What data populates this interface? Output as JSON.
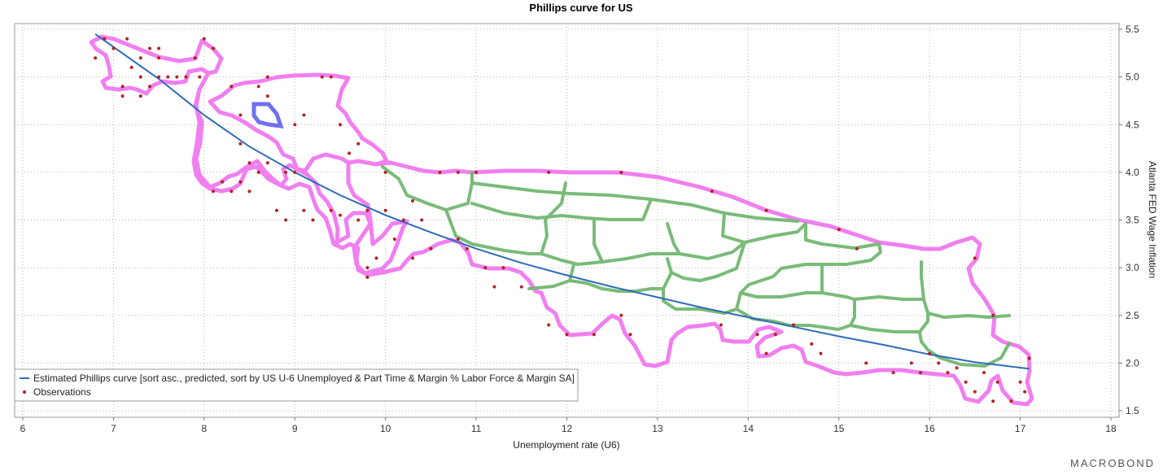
{
  "chart_data": {
    "type": "scatter",
    "title": "Phillips curve for US",
    "xlabel": "Unemployment rate (U6)",
    "ylabel": "Atlanta FED Wage Inflation",
    "xlim": [
      6,
      18
    ],
    "ylim": [
      1.5,
      5.6
    ],
    "x_ticks": [
      6,
      7,
      8,
      9,
      10,
      11,
      12,
      13,
      14,
      15,
      16,
      17,
      18
    ],
    "y_ticks": [
      1.5,
      2.0,
      2.5,
      3.0,
      3.5,
      4.0,
      4.5,
      5.0,
      5.5
    ],
    "y_axis_side": "right",
    "grid": true,
    "legend_position": "bottom-left",
    "brand": "MACROBOND",
    "series": [
      {
        "name": "Estimated Phillips curve [sort asc., predicted, sort by US U-6 Unemployed & Part Time & Margin % Labor Force & Margin SA]",
        "kind": "line",
        "color": "#2e6bb8",
        "points": [
          [
            6.8,
            5.45
          ],
          [
            7.5,
            4.98
          ],
          [
            8,
            4.6
          ],
          [
            8.5,
            4.27
          ],
          [
            9,
            4.0
          ],
          [
            9.5,
            3.76
          ],
          [
            10,
            3.55
          ],
          [
            10.5,
            3.37
          ],
          [
            11,
            3.2
          ],
          [
            11.5,
            3.05
          ],
          [
            12,
            2.92
          ],
          [
            12.5,
            2.8
          ],
          [
            13,
            2.69
          ],
          [
            13.5,
            2.58
          ],
          [
            14,
            2.48
          ],
          [
            14.5,
            2.38
          ],
          [
            15,
            2.28
          ],
          [
            15.5,
            2.19
          ],
          [
            16,
            2.09
          ],
          [
            16.5,
            2.01
          ],
          [
            17.1,
            1.94
          ]
        ]
      },
      {
        "name": "Observations",
        "kind": "scatter",
        "color": "#b22222",
        "points": [
          [
            6.8,
            5.2
          ],
          [
            6.9,
            5.4
          ],
          [
            7.0,
            5.3
          ],
          [
            7.15,
            5.4
          ],
          [
            7.4,
            5.3
          ],
          [
            7.5,
            5.3
          ],
          [
            7.2,
            5.1
          ],
          [
            7.3,
            5.0
          ],
          [
            7.4,
            4.9
          ],
          [
            7.5,
            5.0
          ],
          [
            7.6,
            5.0
          ],
          [
            7.7,
            5.0
          ],
          [
            7.8,
            5.0
          ],
          [
            7.9,
            5.2
          ],
          [
            7.95,
            5.0
          ],
          [
            7.1,
            4.8
          ],
          [
            7.3,
            4.8
          ],
          [
            7.1,
            4.9
          ],
          [
            8.0,
            5.4
          ],
          [
            8.1,
            5.3
          ],
          [
            8.6,
            4.9
          ],
          [
            8.7,
            4.8
          ],
          [
            8.7,
            5.0
          ],
          [
            8.3,
            4.9
          ],
          [
            9.3,
            5.0
          ],
          [
            9.4,
            5.0
          ],
          [
            9.5,
            4.5
          ],
          [
            9.6,
            4.2
          ],
          [
            9.7,
            4.3
          ],
          [
            9.0,
            4.5
          ],
          [
            9.1,
            4.6
          ],
          [
            8.4,
            4.6
          ],
          [
            8.4,
            4.3
          ],
          [
            8.5,
            4.1
          ],
          [
            8.6,
            4.0
          ],
          [
            8.7,
            4.1
          ],
          [
            8.9,
            4.0
          ],
          [
            9.0,
            4.0
          ],
          [
            8.2,
            3.9
          ],
          [
            8.3,
            3.8
          ],
          [
            8.1,
            3.8
          ],
          [
            8.4,
            3.9
          ],
          [
            8.5,
            3.8
          ],
          [
            8.8,
            3.6
          ],
          [
            8.9,
            3.5
          ],
          [
            9.2,
            3.5
          ],
          [
            9.1,
            3.6
          ],
          [
            9.4,
            3.6
          ],
          [
            9.5,
            3.55
          ],
          [
            9.7,
            3.5
          ],
          [
            9.8,
            3.6
          ],
          [
            10.0,
            3.6
          ],
          [
            10.2,
            3.5
          ],
          [
            10.3,
            3.7
          ],
          [
            10.4,
            3.5
          ],
          [
            10.1,
            3.3
          ],
          [
            10.3,
            3.1
          ],
          [
            10.5,
            3.2
          ],
          [
            9.8,
            3.0
          ],
          [
            9.9,
            3.1
          ],
          [
            9.8,
            2.9
          ],
          [
            10.8,
            3.3
          ],
          [
            10.9,
            3.2
          ],
          [
            11.1,
            3.0
          ],
          [
            11.3,
            3.0
          ],
          [
            11.2,
            2.8
          ],
          [
            11.5,
            2.8
          ],
          [
            11.8,
            2.4
          ],
          [
            12.0,
            2.3
          ],
          [
            12.3,
            2.3
          ],
          [
            12.6,
            2.5
          ],
          [
            12.7,
            2.3
          ],
          [
            13.7,
            2.4
          ],
          [
            14.1,
            2.3
          ],
          [
            14.2,
            2.1
          ],
          [
            14.3,
            2.3
          ],
          [
            14.5,
            2.4
          ],
          [
            14.7,
            2.2
          ],
          [
            14.8,
            2.1
          ],
          [
            15.3,
            2.0
          ],
          [
            15.6,
            1.9
          ],
          [
            15.8,
            2.0
          ],
          [
            15.9,
            1.9
          ],
          [
            16.0,
            2.1
          ],
          [
            16.2,
            1.9
          ],
          [
            16.4,
            1.8
          ],
          [
            16.5,
            1.7
          ],
          [
            16.6,
            1.9
          ],
          [
            16.7,
            1.6
          ],
          [
            16.9,
            1.6
          ],
          [
            17.0,
            1.8
          ],
          [
            17.05,
            1.7
          ],
          [
            17.1,
            2.05
          ],
          [
            16.75,
            1.8
          ],
          [
            16.1,
            2.0
          ],
          [
            16.3,
            1.95
          ],
          [
            15.2,
            3.2
          ],
          [
            16.5,
            3.1
          ],
          [
            16.7,
            2.5
          ],
          [
            13.6,
            3.8
          ],
          [
            14.2,
            3.6
          ],
          [
            12.6,
            4.0
          ],
          [
            11.8,
            4.0
          ],
          [
            10.8,
            4.0
          ],
          [
            10.0,
            4.0
          ],
          [
            10.6,
            4.0
          ],
          [
            11.0,
            4.0
          ],
          [
            15.0,
            3.4
          ],
          [
            7.5,
            5.2
          ],
          [
            7.3,
            5.2
          ]
        ]
      }
    ]
  }
}
